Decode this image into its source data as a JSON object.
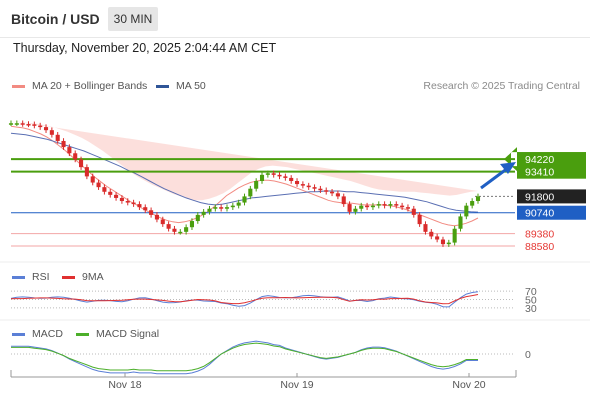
{
  "header": {
    "title": "Bitcoin / USD",
    "interval": "30 MIN"
  },
  "datetime": "Thursday, November 20, 2025 2:04:44 AM CET",
  "credit": "Research © 2025 Trading Central",
  "legends": {
    "main": [
      {
        "label": "MA 20 + Bollinger Bands",
        "color": "#f28b82"
      },
      {
        "label": "MA 50",
        "color": "#2f5597"
      }
    ],
    "rsi": [
      {
        "label": "RSI",
        "color": "#5b7fd6"
      },
      {
        "label": "9MA",
        "color": "#e03030"
      }
    ],
    "macd": [
      {
        "label": "MACD",
        "color": "#5b7fd6"
      },
      {
        "label": "MACD Signal",
        "color": "#4caf2a"
      }
    ]
  },
  "chart_data": {
    "type": "candlestick",
    "x_ticks": [
      "Nov 18",
      "Nov 19",
      "Nov 20"
    ],
    "ylim": [
      87800,
      97800
    ],
    "levels": [
      {
        "value": 94220,
        "label": "94220",
        "kind": "resistance",
        "color": "#4a9e0e"
      },
      {
        "value": 93410,
        "label": "93410",
        "kind": "resistance",
        "color": "#4a9e0e"
      },
      {
        "value": 91800,
        "label": "91800",
        "kind": "last",
        "color": "#222222"
      },
      {
        "value": 90740,
        "label": "90740",
        "kind": "pivot",
        "color": "#1f5fc4"
      },
      {
        "value": 89380,
        "label": "89380",
        "kind": "support",
        "color": "#e53935"
      },
      {
        "value": 88580,
        "label": "88580",
        "kind": "support",
        "color": "#e53935"
      }
    ],
    "close": [
      96550,
      96550,
      96500,
      96480,
      96400,
      96300,
      96100,
      95800,
      95400,
      95000,
      94600,
      94200,
      93700,
      93100,
      92700,
      92400,
      92100,
      91900,
      91700,
      91500,
      91400,
      91300,
      91100,
      90900,
      90600,
      90300,
      90000,
      89700,
      89500,
      89500,
      89800,
      90200,
      90600,
      90800,
      91000,
      91100,
      91000,
      91100,
      91200,
      91400,
      91800,
      92300,
      92800,
      93200,
      93300,
      93200,
      93100,
      93000,
      92800,
      92600,
      92500,
      92400,
      92300,
      92200,
      92100,
      92000,
      91800,
      91300,
      90800,
      91000,
      91200,
      91100,
      91200,
      91300,
      91200,
      91300,
      91200,
      91100,
      91000,
      90600,
      90000,
      89500,
      89200,
      89000,
      88700,
      88800,
      89700,
      90500,
      91200,
      91500,
      91800
    ],
    "ma20": [
      96350,
      96300,
      96250,
      96150,
      96000,
      95850,
      95650,
      95400,
      95100,
      94800,
      94450,
      94100,
      93750,
      93400,
      93050,
      92750,
      92450,
      92200,
      91950,
      91700,
      91450,
      91250,
      91000,
      90800,
      90600,
      90400,
      90250,
      90150,
      90100,
      90150,
      90250,
      90400,
      90600,
      90850,
      91150,
      91500,
      91850,
      92100,
      92350,
      92550,
      92700,
      92800,
      92850,
      92850,
      92800,
      92700,
      92600,
      92450,
      92300,
      92150,
      92000,
      91850,
      91700,
      91550,
      91450,
      91400,
      91350,
      91350,
      91300,
      91250,
      91250,
      91250,
      91250,
      91200,
      91150,
      91050,
      90950,
      90800,
      90650,
      90500,
      90350,
      90200,
      90050,
      89950,
      89900,
      89950,
      90050,
      90200,
      90400
    ],
    "ma50": [
      95900,
      95850,
      95800,
      95700,
      95600,
      95500,
      95350,
      95200,
      95050,
      94900,
      94750,
      94550,
      94350,
      94150,
      93950,
      93750,
      93500,
      93300,
      93050,
      92800,
      92550,
      92300,
      92100,
      91900,
      91700,
      91550,
      91400,
      91300,
      91250,
      91300,
      91400,
      91500,
      91600,
      91700,
      91750,
      91800,
      91850,
      91900,
      91950,
      92000,
      92050,
      92100,
      92100,
      92150,
      92150,
      92150,
      92100,
      92100,
      92050,
      92000,
      91950,
      91900,
      91850,
      91800,
      91750,
      91650,
      91550,
      91450,
      91300,
      91150,
      91000,
      90900,
      90850,
      90800,
      90780
    ],
    "bb_upper": [
      96700,
      96650,
      96600,
      96550,
      96500,
      96400,
      96300,
      96150,
      96000,
      95800,
      95600,
      95350,
      95050,
      94750,
      94400,
      94050,
      93700,
      93350,
      93050,
      92800,
      92550,
      92350,
      92150,
      91950,
      91800,
      91650,
      91550,
      91550,
      91650,
      91800,
      92000,
      92300,
      92650,
      93000,
      93350,
      93600,
      93750,
      93800,
      93750,
      93700,
      93600,
      93500,
      93400,
      93300,
      93200,
      93100,
      93000,
      92900,
      92800,
      92650,
      92500,
      92350,
      92250,
      92200,
      92150,
      92100,
      92100,
      92100,
      92050,
      92000,
      91950,
      91900,
      91850,
      91900,
      92000,
      92100,
      92150
    ],
    "bb_lower": [
      95900,
      95800,
      95650,
      95450,
      95200,
      94900,
      94550,
      94150,
      93700,
      93250,
      92800,
      92350,
      91950,
      91550,
      91200,
      90900,
      90600,
      90350,
      90100,
      89900,
      89700,
      89550,
      89450,
      89400,
      89400,
      89450,
      89550,
      89700,
      89900,
      90100,
      90300,
      90500,
      90700,
      90850,
      91000,
      91100,
      91100,
      91000,
      90850,
      90700,
      90550,
      90400,
      90250,
      90150,
      90100,
      90050,
      90050,
      90100,
      90150,
      90200,
      90200,
      90100,
      89900,
      89600,
      89300,
      89000,
      88700,
      88400,
      88200,
      88100,
      88200,
      88400,
      88700,
      89000,
      89300
    ]
  },
  "rsi": {
    "levels": [
      70,
      50,
      30
    ]
  },
  "macd": {
    "levels": [
      0
    ]
  }
}
